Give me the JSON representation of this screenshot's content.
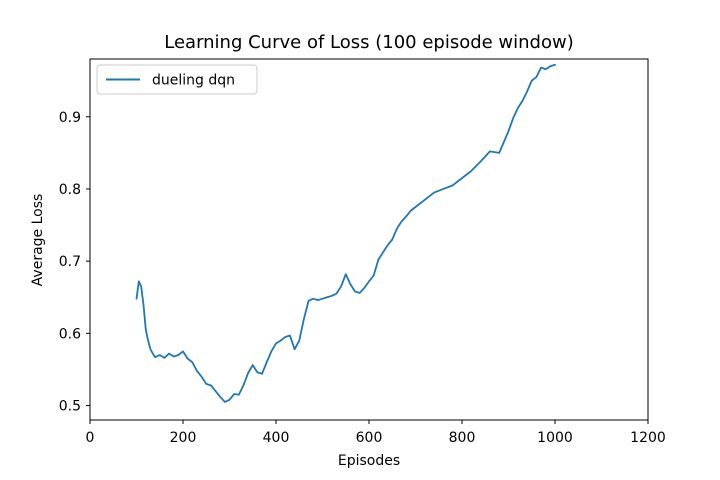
{
  "chart_data": {
    "type": "line",
    "title": "Learning Curve of Loss (100 episode window)",
    "xlabel": "Episodes",
    "ylabel": "Average Loss",
    "xlim": [
      0,
      1200
    ],
    "ylim": [
      0.48,
      0.98
    ],
    "xticks": [
      0,
      200,
      400,
      600,
      800,
      1000,
      1200
    ],
    "yticks": [
      0.5,
      0.6,
      0.7,
      0.8,
      0.9
    ],
    "xtick_labels": [
      "0",
      "200",
      "400",
      "600",
      "800",
      "1000",
      "1200"
    ],
    "ytick_labels": [
      "0.5",
      "0.6",
      "0.7",
      "0.8",
      "0.9"
    ],
    "grid": false,
    "legend_position": "upper-left",
    "series": [
      {
        "name": "dueling dqn",
        "color": "#1f77b4",
        "x": [
          100,
          105,
          110,
          115,
          120,
          125,
          130,
          135,
          140,
          150,
          160,
          170,
          180,
          190,
          200,
          210,
          220,
          230,
          240,
          250,
          260,
          270,
          280,
          290,
          300,
          310,
          320,
          330,
          340,
          350,
          360,
          370,
          380,
          390,
          400,
          410,
          420,
          430,
          440,
          450,
          460,
          470,
          480,
          490,
          500,
          510,
          520,
          530,
          540,
          550,
          560,
          570,
          580,
          590,
          600,
          610,
          620,
          630,
          640,
          650,
          660,
          670,
          680,
          690,
          700,
          720,
          740,
          760,
          780,
          800,
          820,
          840,
          860,
          880,
          900,
          910,
          920,
          930,
          940,
          950,
          960,
          970,
          980,
          990,
          1000
        ],
        "values": [
          0.648,
          0.672,
          0.665,
          0.64,
          0.605,
          0.59,
          0.578,
          0.572,
          0.567,
          0.57,
          0.566,
          0.572,
          0.568,
          0.57,
          0.575,
          0.565,
          0.56,
          0.548,
          0.54,
          0.53,
          0.528,
          0.52,
          0.512,
          0.505,
          0.508,
          0.516,
          0.515,
          0.528,
          0.545,
          0.556,
          0.546,
          0.544,
          0.56,
          0.575,
          0.586,
          0.59,
          0.595,
          0.597,
          0.578,
          0.59,
          0.62,
          0.645,
          0.648,
          0.646,
          0.648,
          0.65,
          0.652,
          0.655,
          0.665,
          0.682,
          0.668,
          0.658,
          0.656,
          0.663,
          0.672,
          0.68,
          0.702,
          0.712,
          0.722,
          0.73,
          0.745,
          0.755,
          0.762,
          0.77,
          0.775,
          0.785,
          0.795,
          0.8,
          0.805,
          0.815,
          0.825,
          0.838,
          0.852,
          0.85,
          0.88,
          0.898,
          0.912,
          0.922,
          0.935,
          0.95,
          0.955,
          0.968,
          0.966,
          0.97,
          0.972
        ]
      }
    ]
  }
}
